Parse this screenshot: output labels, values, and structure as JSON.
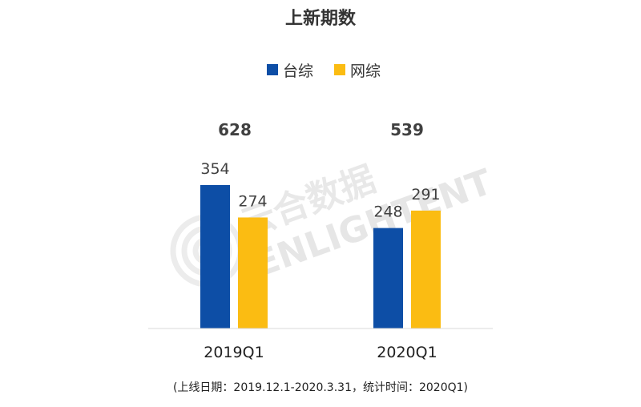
{
  "chart_data": {
    "type": "bar",
    "title": "上新期数",
    "categories": [
      "2019Q1",
      "2020Q1"
    ],
    "series": [
      {
        "name": "台综",
        "color": "#0d4ea6",
        "values": [
          354,
          248
        ]
      },
      {
        "name": "网综",
        "color": "#fbbc12",
        "values": [
          274,
          291
        ]
      }
    ],
    "totals": [
      "628",
      "539"
    ],
    "ylim": [
      0,
      354
    ],
    "grid": false,
    "legend_position": "top-center",
    "footnote": "(上线日期：2019.12.1-2020.3.31，统计时间：2020Q1)"
  },
  "watermark": {
    "cn": "云合数据",
    "en": "ENLIGHTENT"
  }
}
